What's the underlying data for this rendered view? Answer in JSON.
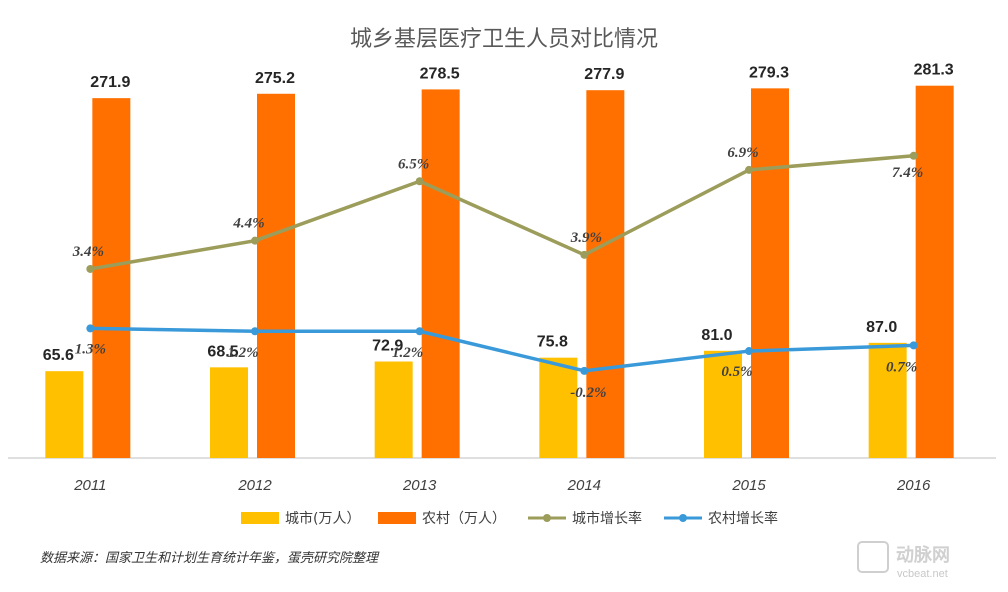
{
  "chart_data": {
    "type": "bar",
    "title": "城乡基层医疗卫生人员对比情况",
    "categories": [
      "2011",
      "2012",
      "2013",
      "2014",
      "2015",
      "2016"
    ],
    "series": [
      {
        "name": "城市(万人）",
        "kind": "bar",
        "color": "#FFC000",
        "values": [
          65.6,
          68.5,
          72.9,
          75.8,
          81.0,
          87.0
        ],
        "labels": [
          "65.6",
          "68.5",
          "72.9",
          "75.8",
          "81.0",
          "87.0"
        ]
      },
      {
        "name": "农村（万人）",
        "kind": "bar",
        "color": "#FF7000",
        "values": [
          271.9,
          275.2,
          278.5,
          277.9,
          279.3,
          281.3
        ],
        "labels": [
          "271.9",
          "275.2",
          "278.5",
          "277.9",
          "279.3",
          "281.3"
        ]
      },
      {
        "name": "城市增长率",
        "kind": "line",
        "color": "#9C9D5A",
        "values": [
          3.4,
          4.4,
          6.5,
          3.9,
          6.9,
          7.4
        ],
        "labels": [
          "3.4%",
          "4.4%",
          "6.5%",
          "3.9%",
          "6.9%",
          "7.4%"
        ]
      },
      {
        "name": "农村增长率",
        "kind": "line",
        "color": "#3A9AD9",
        "values": [
          1.3,
          1.2,
          1.2,
          -0.2,
          0.5,
          0.7
        ],
        "labels": [
          "1.3%",
          "1.2%",
          "1.2%",
          "-0.2%",
          "0.5%",
          "0.7%"
        ]
      }
    ],
    "legend_position": "bottom",
    "grid": false
  },
  "source_note": "数据来源：国家卫生和计划生育统计年鉴，蛋壳研究院整理",
  "watermark": {
    "brand": "动脉网",
    "url": "vcbeat.net"
  }
}
